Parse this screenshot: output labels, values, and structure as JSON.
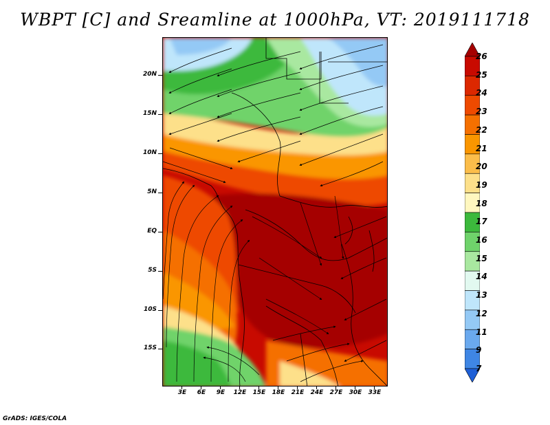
{
  "title": "WBPT [C] and Sreamline at 1000hPa, VT: 2019111718",
  "latitude_labels": [
    "20N",
    "15N",
    "10N",
    "5N",
    "EQ",
    "5S",
    "10S",
    "15S"
  ],
  "longitude_labels": [
    "3E",
    "6E",
    "9E",
    "12E",
    "15E",
    "18E",
    "21E",
    "24E",
    "27E",
    "30E",
    "33E"
  ],
  "colorbar": {
    "labels": [
      "26",
      "25",
      "24",
      "23",
      "22",
      "21",
      "20",
      "19",
      "18",
      "17",
      "16",
      "15",
      "14",
      "13",
      "12",
      "11",
      "9",
      "7"
    ],
    "colors": [
      "#a50000",
      "#c80a00",
      "#dc2800",
      "#ee4a00",
      "#f57000",
      "#fa9600",
      "#fbbd4a",
      "#fde08a",
      "#fff7bf",
      "#3cb93c",
      "#6fd36b",
      "#a9e8a0",
      "#e2f9f0",
      "#bfe6fb",
      "#94c9f5",
      "#6aa9ee",
      "#3f86e4",
      "#1e5fd6"
    ]
  },
  "colors": {
    "frame": "#000000",
    "land_outline": "#000000",
    "streamline": "#000000"
  },
  "credit": "GrADS: IGES/COLA"
}
